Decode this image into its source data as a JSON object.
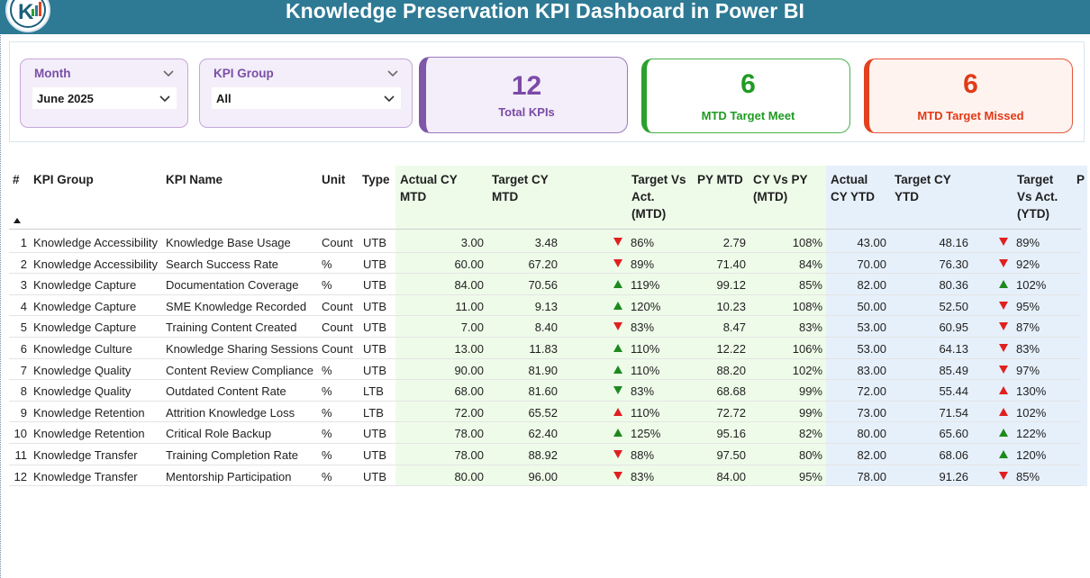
{
  "header": {
    "title": "Knowledge Preservation KPI Dashboard in Power BI"
  },
  "logo": {
    "icon": "logo-icon"
  },
  "filters": {
    "month": {
      "label": "Month",
      "value": "June 2025"
    },
    "kpi_group": {
      "label": "KPI Group",
      "value": "All"
    }
  },
  "cards": {
    "total": {
      "value": "12",
      "label": "Total KPIs"
    },
    "meet": {
      "value": "6",
      "label": "MTD Target Meet"
    },
    "missed": {
      "value": "6",
      "label": "MTD Target Missed"
    }
  },
  "colors": {
    "header_bg": "#2e7a95",
    "purple": "#7b4aa6",
    "green": "#1f9b23",
    "red": "#e13a17",
    "mtd_bg": "#eefbe9",
    "ytd_bg": "#e6f0fb"
  },
  "table": {
    "headers": {
      "num": "#",
      "group": "KPI Group",
      "name": "KPI Name",
      "unit": "Unit",
      "type": "Type",
      "actual_mtd_1": "Actual CY",
      "actual_mtd_2": "MTD",
      "target_mtd_1": "Target CY",
      "target_mtd_2": "MTD",
      "tva_mtd_1": "Target Vs",
      "tva_mtd_2": "Act.",
      "tva_mtd_3": "(MTD)",
      "py_mtd": "PY MTD",
      "cvp_1": "CY Vs PY",
      "cvp_2": "(MTD)",
      "actual_ytd_1": "Actual",
      "actual_ytd_2": "CY YTD",
      "target_ytd_1": "Target CY",
      "target_ytd_2": "YTD",
      "tva_ytd_1": "Target",
      "tva_ytd_2": "Vs Act.",
      "tva_ytd_3": "(YTD)",
      "more": "P"
    },
    "rows": [
      {
        "num": "1",
        "group": "Knowledge Accessibility",
        "name": "Knowledge Base Usage",
        "unit": "Count",
        "type": "UTB",
        "act_mtd": "3.00",
        "tgt_mtd": "3.48",
        "mtd_icon": "down-red",
        "tva_mtd": "86%",
        "py_mtd": "2.79",
        "cvp": "108%",
        "act_ytd": "43.00",
        "tgt_ytd": "48.16",
        "ytd_icon": "down-red",
        "tva_ytd": "89%"
      },
      {
        "num": "2",
        "group": "Knowledge Accessibility",
        "name": "Search Success Rate",
        "unit": "%",
        "type": "UTB",
        "act_mtd": "60.00",
        "tgt_mtd": "67.20",
        "mtd_icon": "down-red",
        "tva_mtd": "89%",
        "py_mtd": "71.40",
        "cvp": "84%",
        "act_ytd": "70.00",
        "tgt_ytd": "76.30",
        "ytd_icon": "down-red",
        "tva_ytd": "92%"
      },
      {
        "num": "3",
        "group": "Knowledge Capture",
        "name": "Documentation Coverage",
        "unit": "%",
        "type": "UTB",
        "act_mtd": "84.00",
        "tgt_mtd": "70.56",
        "mtd_icon": "up-green",
        "tva_mtd": "119%",
        "py_mtd": "99.12",
        "cvp": "85%",
        "act_ytd": "82.00",
        "tgt_ytd": "80.36",
        "ytd_icon": "up-green",
        "tva_ytd": "102%"
      },
      {
        "num": "4",
        "group": "Knowledge Capture",
        "name": "SME Knowledge Recorded",
        "unit": "Count",
        "type": "UTB",
        "act_mtd": "11.00",
        "tgt_mtd": "9.13",
        "mtd_icon": "up-green",
        "tva_mtd": "120%",
        "py_mtd": "10.23",
        "cvp": "108%",
        "act_ytd": "50.00",
        "tgt_ytd": "52.50",
        "ytd_icon": "down-red",
        "tva_ytd": "95%"
      },
      {
        "num": "5",
        "group": "Knowledge Capture",
        "name": "Training Content Created",
        "unit": "Count",
        "type": "UTB",
        "act_mtd": "7.00",
        "tgt_mtd": "8.40",
        "mtd_icon": "down-red",
        "tva_mtd": "83%",
        "py_mtd": "8.47",
        "cvp": "83%",
        "act_ytd": "53.00",
        "tgt_ytd": "60.95",
        "ytd_icon": "down-red",
        "tva_ytd": "87%"
      },
      {
        "num": "6",
        "group": "Knowledge Culture",
        "name": "Knowledge Sharing Sessions",
        "unit": "Count",
        "type": "UTB",
        "act_mtd": "13.00",
        "tgt_mtd": "11.83",
        "mtd_icon": "up-green",
        "tva_mtd": "110%",
        "py_mtd": "12.22",
        "cvp": "106%",
        "act_ytd": "53.00",
        "tgt_ytd": "64.13",
        "ytd_icon": "down-red",
        "tva_ytd": "83%"
      },
      {
        "num": "7",
        "group": "Knowledge Quality",
        "name": "Content Review Compliance",
        "unit": "%",
        "type": "UTB",
        "act_mtd": "90.00",
        "tgt_mtd": "81.90",
        "mtd_icon": "up-green",
        "tva_mtd": "110%",
        "py_mtd": "88.20",
        "cvp": "102%",
        "act_ytd": "83.00",
        "tgt_ytd": "85.49",
        "ytd_icon": "down-red",
        "tva_ytd": "97%"
      },
      {
        "num": "8",
        "group": "Knowledge Quality",
        "name": "Outdated Content Rate",
        "unit": "%",
        "type": "LTB",
        "act_mtd": "68.00",
        "tgt_mtd": "81.60",
        "mtd_icon": "down-green",
        "tva_mtd": "83%",
        "py_mtd": "68.68",
        "cvp": "99%",
        "act_ytd": "72.00",
        "tgt_ytd": "55.44",
        "ytd_icon": "up-red",
        "tva_ytd": "130%"
      },
      {
        "num": "9",
        "group": "Knowledge Retention",
        "name": "Attrition Knowledge Loss",
        "unit": "%",
        "type": "LTB",
        "act_mtd": "72.00",
        "tgt_mtd": "65.52",
        "mtd_icon": "up-red",
        "tva_mtd": "110%",
        "py_mtd": "72.72",
        "cvp": "99%",
        "act_ytd": "73.00",
        "tgt_ytd": "71.54",
        "ytd_icon": "up-red",
        "tva_ytd": "102%"
      },
      {
        "num": "10",
        "group": "Knowledge Retention",
        "name": "Critical Role Backup",
        "unit": "%",
        "type": "UTB",
        "act_mtd": "78.00",
        "tgt_mtd": "62.40",
        "mtd_icon": "up-green",
        "tva_mtd": "125%",
        "py_mtd": "95.16",
        "cvp": "82%",
        "act_ytd": "80.00",
        "tgt_ytd": "65.60",
        "ytd_icon": "up-green",
        "tva_ytd": "122%"
      },
      {
        "num": "11",
        "group": "Knowledge Transfer",
        "name": "Training Completion Rate",
        "unit": "%",
        "type": "UTB",
        "act_mtd": "78.00",
        "tgt_mtd": "88.92",
        "mtd_icon": "down-red",
        "tva_mtd": "88%",
        "py_mtd": "97.50",
        "cvp": "80%",
        "act_ytd": "82.00",
        "tgt_ytd": "68.06",
        "ytd_icon": "up-green",
        "tva_ytd": "120%"
      },
      {
        "num": "12",
        "group": "Knowledge Transfer",
        "name": "Mentorship Participation",
        "unit": "%",
        "type": "UTB",
        "act_mtd": "80.00",
        "tgt_mtd": "96.00",
        "mtd_icon": "down-red",
        "tva_mtd": "83%",
        "py_mtd": "84.00",
        "cvp": "95%",
        "act_ytd": "78.00",
        "tgt_ytd": "91.26",
        "ytd_icon": "down-red",
        "tva_ytd": "85%"
      }
    ]
  }
}
